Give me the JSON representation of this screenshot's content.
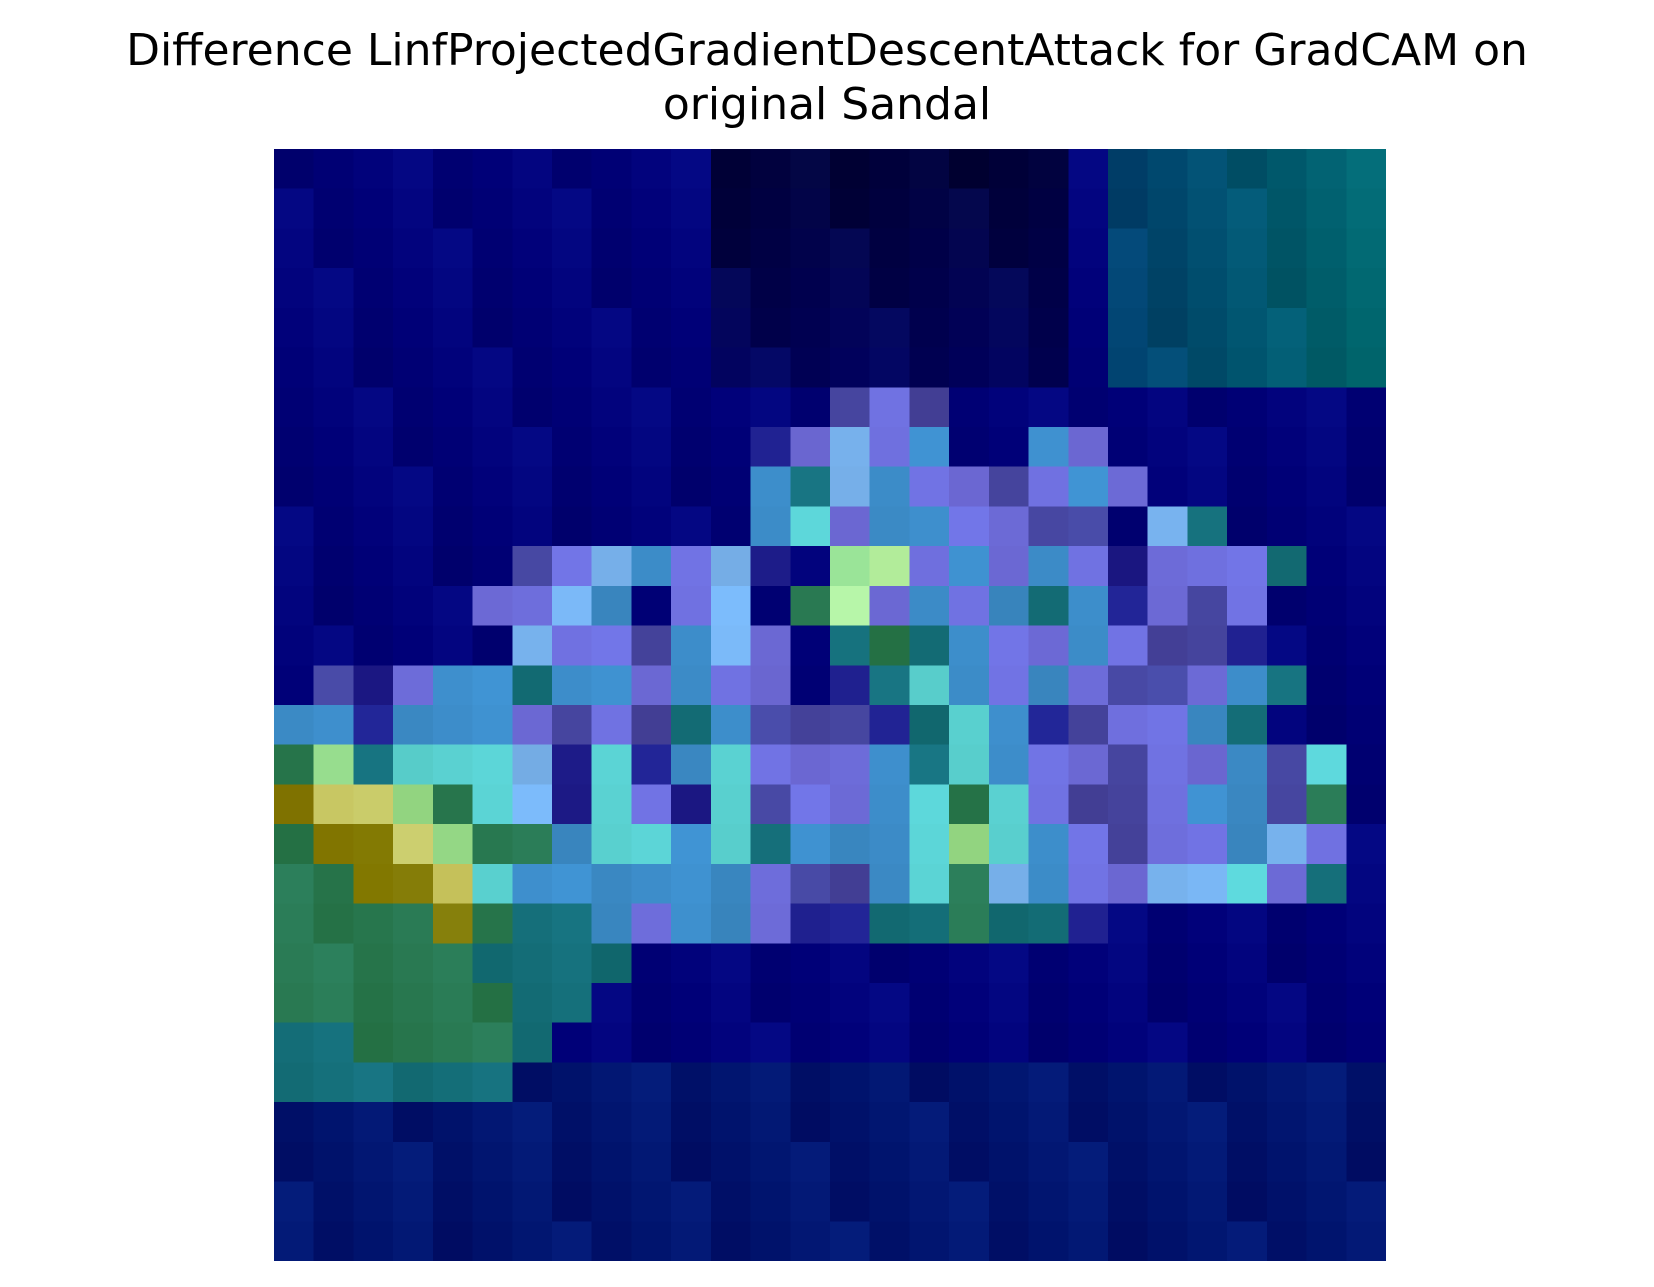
{
  "figure": {
    "title": "Difference LinfProjectedGradientDescentAttack for GradCAM on\noriginal Sandal"
  },
  "image": {
    "description": "Pixelated GradCAM difference heatmap overlaid on a sandal image",
    "grid_size": 28,
    "dominant_colors": [
      "#000080",
      "#002a80",
      "#00507f",
      "#5a5acc",
      "#6ab0e0",
      "#b8f0a0",
      "#7a7a00",
      "#2a7a50"
    ]
  }
}
